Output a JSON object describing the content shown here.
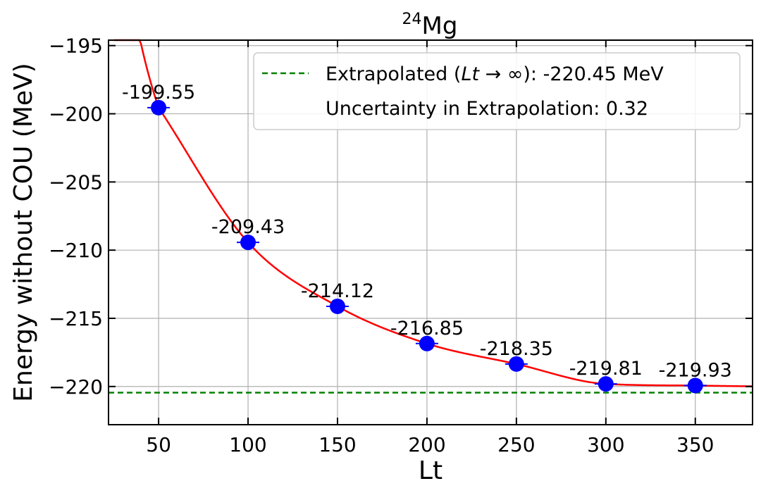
{
  "chart_data": {
    "type": "scatter",
    "title_base": "Mg",
    "title_superscript": "24",
    "xlabel": "Lt",
    "ylabel": "Energy without COU (MeV)",
    "xlim": [
      22,
      382
    ],
    "ylim": [
      -222.8,
      -194.6
    ],
    "xticks": [
      50,
      100,
      150,
      200,
      250,
      300,
      350
    ],
    "yticks": [
      -195,
      -200,
      -205,
      -210,
      -215,
      -220
    ],
    "ytick_labels": [
      "−195",
      "−200",
      "−205",
      "−210",
      "−215",
      "−220"
    ],
    "grid": true,
    "legend_position": "top-right",
    "points": [
      {
        "x": 50,
        "y": -199.55,
        "label": "-199.55"
      },
      {
        "x": 100,
        "y": -209.43,
        "label": "-209.43"
      },
      {
        "x": 150,
        "y": -214.12,
        "label": "-214.12"
      },
      {
        "x": 200,
        "y": -216.85,
        "label": "-216.85"
      },
      {
        "x": 250,
        "y": -218.35,
        "label": "-218.35"
      },
      {
        "x": 300,
        "y": -219.81,
        "label": "-219.81"
      },
      {
        "x": 350,
        "y": -219.93,
        "label": "-219.93"
      }
    ],
    "point_color": "#0000ff",
    "fit_color": "#ff0000",
    "extrapolated_value": -220.45,
    "extrapolated_color": "#008000",
    "legend": {
      "extrapolated_prefix": "Extrapolated (",
      "extrapolated_italic": "Lt",
      "extrapolated_arrow": " → ∞): -220.45 MeV",
      "uncertainty": "Uncertainty in Extrapolation: 0.32"
    }
  }
}
